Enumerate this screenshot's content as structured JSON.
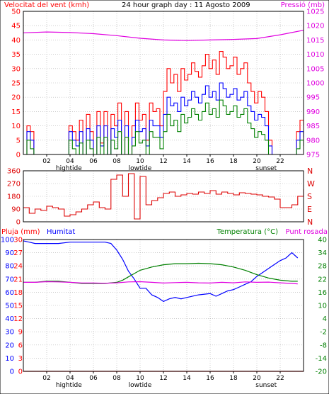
{
  "header": {
    "wind_label": "Velocitat del vent (kmh)",
    "title": "24 hour graph day : 11 Agosto 2009",
    "pressure_label": "Pressió (mb)"
  },
  "lower_header": {
    "rain_label": "Pluja (mm)",
    "humidity_label": "Humitat",
    "temperature_label": "Temperatura (°C)",
    "dewpoint_label": "Punt rosada"
  },
  "x_axis": {
    "ticks": [
      "02",
      "04",
      "06",
      "08",
      "10",
      "12",
      "14",
      "16",
      "18",
      "20",
      "22"
    ],
    "events": [
      {
        "label": "hightide",
        "x": 3.9
      },
      {
        "label": "lowtide",
        "x": 10.0
      },
      {
        "label": "sunset",
        "x": 20.8
      }
    ]
  },
  "colors": {
    "wind_gust": "#ff0000",
    "wind_avg": "#0000ff",
    "wind_min": "#008000",
    "pressure": "#e000e0",
    "direction": "#dd0000",
    "humidity": "#0000ff",
    "temperature": "#008000",
    "dewpoint": "#e000e0",
    "rain": "#ff0000",
    "grid": "#b0b0b0"
  },
  "chart_data": [
    {
      "type": "line",
      "title": "Velocitat del vent (kmh) / Pressió (mb)",
      "xlim": [
        0,
        24
      ],
      "ylim": [
        0,
        50
      ],
      "y2lim": [
        975,
        1025
      ],
      "y_ticks": [
        0,
        5,
        10,
        15,
        20,
        25,
        30,
        35,
        40,
        45,
        50
      ],
      "y2_ticks": [
        975,
        980,
        985,
        990,
        995,
        1000,
        1005,
        1010,
        1015,
        1020,
        1025
      ],
      "grid": true,
      "series": [
        {
          "name": "gust",
          "axis": "left",
          "color": "#ff0000",
          "x": [
            0,
            0.3,
            0.6,
            0.9,
            1.2,
            1.5,
            1.8,
            2.1,
            2.4,
            2.7,
            3.0,
            3.3,
            3.6,
            3.9,
            4.2,
            4.5,
            4.8,
            5.1,
            5.4,
            5.7,
            6.0,
            6.3,
            6.6,
            6.9,
            7.2,
            7.5,
            7.8,
            8.1,
            8.4,
            8.7,
            9.0,
            9.3,
            9.6,
            9.9,
            10.2,
            10.5,
            10.8,
            11.1,
            11.4,
            11.7,
            12.0,
            12.3,
            12.6,
            12.9,
            13.2,
            13.5,
            13.8,
            14.1,
            14.4,
            14.7,
            15.0,
            15.3,
            15.6,
            15.9,
            16.2,
            16.5,
            16.8,
            17.1,
            17.4,
            17.7,
            18.0,
            18.3,
            18.6,
            18.9,
            19.2,
            19.5,
            19.8,
            20.1,
            20.4,
            20.7,
            21.0,
            21.3,
            21.6,
            21.9,
            22.2,
            22.5,
            22.8,
            23.1,
            23.4,
            23.7,
            24.0
          ],
          "values": [
            0,
            10,
            8,
            0,
            0,
            0,
            0,
            0,
            0,
            0,
            0,
            0,
            0,
            10,
            8,
            5,
            12,
            0,
            14,
            8,
            0,
            15,
            4,
            15,
            0,
            14,
            10,
            18,
            0,
            15,
            0,
            10,
            18,
            12,
            14,
            5,
            18,
            15,
            16,
            10,
            22,
            30,
            25,
            28,
            22,
            30,
            26,
            28,
            32,
            29,
            27,
            31,
            35,
            30,
            33,
            28,
            36,
            34,
            30,
            31,
            34,
            28,
            30,
            32,
            25,
            22,
            18,
            22,
            20,
            15,
            5,
            0,
            0,
            0,
            0,
            0,
            0,
            0,
            8,
            12,
            10
          ]
        },
        {
          "name": "average",
          "axis": "left",
          "color": "#0000ff",
          "x": [
            0,
            0.3,
            0.6,
            0.9,
            1.2,
            1.5,
            1.8,
            2.1,
            2.4,
            2.7,
            3.0,
            3.3,
            3.6,
            3.9,
            4.2,
            4.5,
            4.8,
            5.1,
            5.4,
            5.7,
            6.0,
            6.3,
            6.6,
            6.9,
            7.2,
            7.5,
            7.8,
            8.1,
            8.4,
            8.7,
            9.0,
            9.3,
            9.6,
            9.9,
            10.2,
            10.5,
            10.8,
            11.1,
            11.4,
            11.7,
            12.0,
            12.3,
            12.6,
            12.9,
            13.2,
            13.5,
            13.8,
            14.1,
            14.4,
            14.7,
            15.0,
            15.3,
            15.6,
            15.9,
            16.2,
            16.5,
            16.8,
            17.1,
            17.4,
            17.7,
            18.0,
            18.3,
            18.6,
            18.9,
            19.2,
            19.5,
            19.8,
            20.1,
            20.4,
            20.7,
            21.0,
            21.3,
            21.6,
            21.9,
            22.2,
            22.5,
            22.8,
            23.1,
            23.4,
            23.7,
            24.0
          ],
          "values": [
            0,
            8,
            5,
            0,
            0,
            0,
            0,
            0,
            0,
            0,
            0,
            0,
            0,
            8,
            5,
            3,
            8,
            0,
            9,
            5,
            0,
            10,
            3,
            10,
            0,
            9,
            6,
            12,
            0,
            10,
            0,
            6,
            12,
            8,
            9,
            3,
            12,
            10,
            10,
            6,
            14,
            20,
            17,
            18,
            15,
            20,
            17,
            19,
            22,
            20,
            18,
            21,
            24,
            20,
            22,
            19,
            25,
            23,
            20,
            21,
            23,
            19,
            20,
            22,
            17,
            15,
            12,
            14,
            13,
            10,
            3,
            0,
            0,
            0,
            0,
            0,
            0,
            0,
            5,
            8,
            6
          ]
        },
        {
          "name": "minimum",
          "axis": "left",
          "color": "#008000",
          "x": [
            0,
            0.3,
            0.6,
            0.9,
            1.2,
            1.5,
            1.8,
            2.1,
            2.4,
            2.7,
            3.0,
            3.3,
            3.6,
            3.9,
            4.2,
            4.5,
            4.8,
            5.1,
            5.4,
            5.7,
            6.0,
            6.3,
            6.6,
            6.9,
            7.2,
            7.5,
            7.8,
            8.1,
            8.4,
            8.7,
            9.0,
            9.3,
            9.6,
            9.9,
            10.2,
            10.5,
            10.8,
            11.1,
            11.4,
            11.7,
            12.0,
            12.3,
            12.6,
            12.9,
            13.2,
            13.5,
            13.8,
            14.1,
            14.4,
            14.7,
            15.0,
            15.3,
            15.6,
            15.9,
            16.2,
            16.5,
            16.8,
            17.1,
            17.4,
            17.7,
            18.0,
            18.3,
            18.6,
            18.9,
            19.2,
            19.5,
            19.8,
            20.1,
            20.4,
            20.7,
            21.0,
            21.3,
            21.6,
            21.9,
            22.2,
            22.5,
            22.8,
            23.1,
            23.4,
            23.7,
            24.0
          ],
          "values": [
            0,
            5,
            2,
            0,
            0,
            0,
            0,
            0,
            0,
            0,
            0,
            0,
            0,
            5,
            2,
            0,
            4,
            0,
            5,
            2,
            0,
            6,
            0,
            6,
            0,
            5,
            2,
            8,
            0,
            6,
            0,
            3,
            8,
            4,
            5,
            0,
            8,
            6,
            6,
            2,
            8,
            14,
            10,
            12,
            8,
            14,
            11,
            13,
            16,
            14,
            12,
            15,
            18,
            14,
            16,
            13,
            19,
            17,
            14,
            15,
            17,
            13,
            14,
            16,
            11,
            9,
            6,
            8,
            7,
            5,
            0,
            0,
            0,
            0,
            0,
            0,
            0,
            0,
            2,
            5,
            3
          ]
        },
        {
          "name": "pressure",
          "axis": "right",
          "color": "#e000e0",
          "x": [
            0,
            2,
            4,
            6,
            8,
            10,
            12,
            14,
            16,
            18,
            20,
            22,
            23,
            24
          ],
          "values": [
            1017.5,
            1017.8,
            1017.6,
            1017.2,
            1016.5,
            1015.6,
            1015.0,
            1014.8,
            1015.0,
            1015.2,
            1015.5,
            1016.8,
            1017.6,
            1018.4
          ]
        }
      ]
    },
    {
      "type": "scatter",
      "title": "Wind direction",
      "xlim": [
        0,
        24
      ],
      "ylim": [
        0,
        360
      ],
      "y_ticks": [
        0,
        90,
        180,
        270,
        360
      ],
      "y2_labels": [
        "N",
        "W",
        "S",
        "E",
        "N"
      ],
      "grid": true,
      "series": [
        {
          "name": "direction",
          "color": "#dd0000",
          "x": [
            0,
            0.5,
            1.0,
            1.5,
            2.0,
            2.5,
            3.0,
            3.5,
            4.0,
            4.5,
            5.0,
            5.5,
            6.0,
            6.5,
            7.0,
            7.5,
            8.0,
            8.5,
            9.0,
            9.5,
            10.0,
            10.5,
            11.0,
            11.5,
            12.0,
            12.5,
            13.0,
            13.5,
            14.0,
            14.5,
            15.0,
            15.5,
            16.0,
            16.5,
            17.0,
            17.5,
            18.0,
            18.5,
            19.0,
            19.5,
            20.0,
            20.5,
            21.0,
            21.5,
            22.0,
            22.5,
            23.0,
            23.5,
            24.0
          ],
          "values": [
            100,
            60,
            90,
            80,
            110,
            100,
            90,
            40,
            50,
            70,
            90,
            120,
            140,
            100,
            90,
            300,
            330,
            180,
            340,
            20,
            320,
            120,
            150,
            170,
            200,
            210,
            180,
            190,
            200,
            195,
            210,
            200,
            220,
            195,
            210,
            200,
            190,
            205,
            200,
            195,
            190,
            180,
            175,
            160,
            100,
            100,
            120,
            180,
            230
          ]
        }
      ]
    },
    {
      "type": "line",
      "title": "Pluja (mm) / Humitat / Temperatura (°C) / Punt rosada",
      "xlim": [
        0,
        24
      ],
      "ylim_rain": [
        0,
        30
      ],
      "ylim_humidity": [
        0,
        100
      ],
      "ylim_temperature": [
        -20,
        40
      ],
      "rain_ticks": [
        0,
        3,
        6,
        9,
        12,
        15,
        18,
        21,
        24,
        27,
        30
      ],
      "humidity_ticks": [
        0,
        10,
        20,
        30,
        40,
        50,
        60,
        70,
        80,
        90,
        100
      ],
      "temperature_ticks": [
        -20,
        -14,
        -8,
        -2,
        4,
        10,
        16,
        22,
        28,
        34,
        40
      ],
      "grid": true,
      "series": [
        {
          "name": "Pluja (mm)",
          "axis": "rain",
          "color": "#ff0000",
          "x": [
            0,
            24
          ],
          "values": [
            0,
            0
          ]
        },
        {
          "name": "Humitat",
          "axis": "humidity",
          "color": "#0000ff",
          "x": [
            0,
            0.5,
            1,
            2,
            3,
            4,
            5,
            6,
            7,
            7.5,
            8,
            8.5,
            9,
            9.5,
            10,
            10.5,
            11,
            11.5,
            12,
            12.5,
            13,
            13.5,
            14,
            15,
            16,
            16.5,
            17,
            17.5,
            18,
            18.5,
            19,
            19.5,
            20,
            20.5,
            21,
            21.5,
            22,
            22.5,
            23,
            23.5
          ],
          "values": [
            99,
            98,
            97,
            97,
            97,
            98,
            98,
            98,
            98,
            97,
            92,
            85,
            76,
            70,
            63,
            63,
            58,
            56,
            53,
            55,
            56,
            55,
            56,
            58,
            59,
            57,
            59,
            61,
            62,
            64,
            66,
            68,
            72,
            75,
            78,
            81,
            84,
            86,
            90,
            86
          ]
        },
        {
          "name": "Temperatura (°C)",
          "axis": "temperature",
          "color": "#008000",
          "x": [
            0,
            1,
            2,
            3,
            4,
            5,
            6,
            7,
            8,
            8.5,
            9,
            9.5,
            10,
            11,
            12,
            13,
            14,
            15,
            16,
            17,
            18,
            19,
            20,
            21,
            22,
            23,
            23.5
          ],
          "values": [
            20.5,
            20.5,
            21,
            21,
            20.5,
            20,
            20,
            20,
            20.5,
            21.5,
            23,
            24.5,
            26,
            27.5,
            28.5,
            29,
            29,
            29.2,
            29,
            28.5,
            27.5,
            26,
            24,
            22.5,
            21.5,
            21,
            21
          ]
        },
        {
          "name": "Punt rosada",
          "axis": "temperature",
          "color": "#e000e0",
          "x": [
            0,
            1,
            2,
            3,
            4,
            5,
            6,
            7,
            8,
            9,
            10,
            11,
            12,
            13,
            14,
            15,
            16,
            17,
            18,
            19,
            20,
            21,
            22,
            23,
            23.5
          ],
          "values": [
            20.5,
            20.5,
            20.8,
            20.7,
            20.5,
            20.2,
            20.2,
            20.1,
            20.3,
            20.7,
            20.8,
            20.5,
            20.2,
            20.4,
            20.5,
            20.3,
            20.2,
            20.5,
            20.3,
            20.7,
            20.5,
            20.6,
            20.3,
            20.0,
            19.8
          ]
        }
      ]
    }
  ]
}
